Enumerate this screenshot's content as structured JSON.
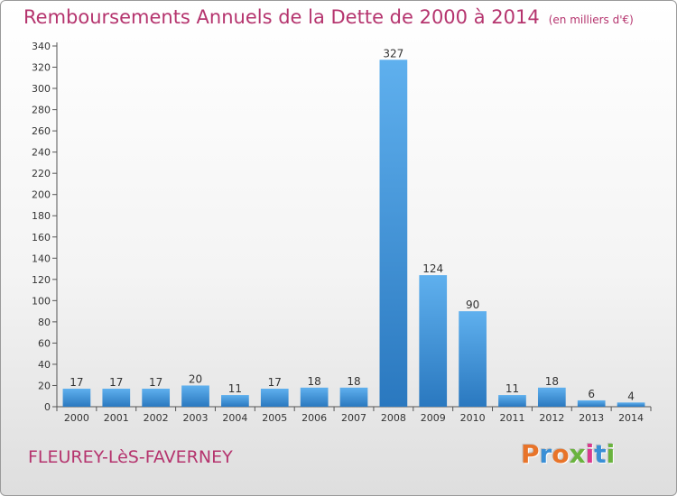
{
  "title": "Remboursements Annuels de la Dette de 2000 à 2014",
  "unit_note": "(en milliers d'€)",
  "commune": "FLEUREY-LèS-FAVERNEY",
  "logo": {
    "text": "Proxiti",
    "letter_colors": [
      "#e8742a",
      "#3a8fd6",
      "#e8742a",
      "#6ab33e",
      "#d93a8e",
      "#3a8fd6",
      "#6ab33e"
    ]
  },
  "colors": {
    "title": "#b5346e",
    "bar_light": "#5fb0ee",
    "bar_dark": "#2a78bf",
    "axis": "#555555",
    "grid": "#d0d0d0"
  },
  "chart_data": {
    "type": "bar",
    "categories": [
      "2000",
      "2001",
      "2002",
      "2003",
      "2004",
      "2005",
      "2006",
      "2007",
      "2008",
      "2009",
      "2010",
      "2011",
      "2012",
      "2013",
      "2014"
    ],
    "values": [
      17,
      17,
      17,
      20,
      11,
      17,
      18,
      18,
      327,
      124,
      90,
      11,
      18,
      6,
      4
    ],
    "data_labels": [
      "17",
      "17",
      "17",
      "20",
      "11",
      "17",
      "18",
      "18",
      "327",
      "124",
      "90",
      "11",
      "18",
      "6",
      "4"
    ],
    "ylim": [
      0,
      340
    ],
    "yticks": [
      0,
      20,
      40,
      60,
      80,
      100,
      120,
      140,
      160,
      180,
      200,
      220,
      240,
      260,
      280,
      300,
      320,
      340
    ],
    "grid": false,
    "legend": "none"
  }
}
